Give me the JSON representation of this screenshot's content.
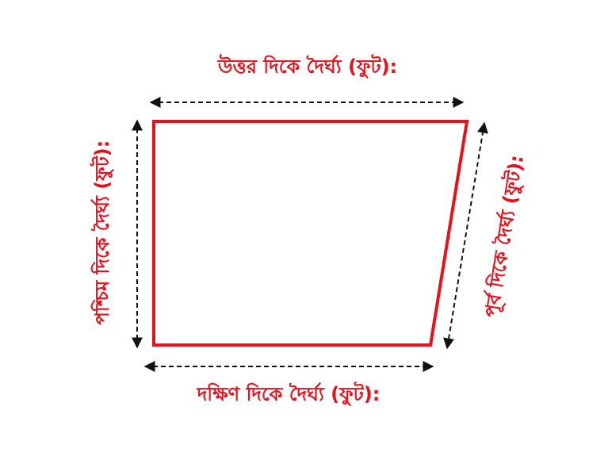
{
  "colors": {
    "shape_stroke": "#e8101a",
    "label": "#e8101a",
    "arrow": "#111111"
  },
  "labels": {
    "north": "উত্তর দিকে দৈর্ঘ্য (ফুট):",
    "south": "দক্ষিণ দিকে দৈর্ঘ্য (ফুট):",
    "west": "পশ্চিম দিকে দৈর্ঘ্য (ফুট):",
    "east": "পূর্ব দিকে দৈর্ঘ্য (ফুট):"
  }
}
